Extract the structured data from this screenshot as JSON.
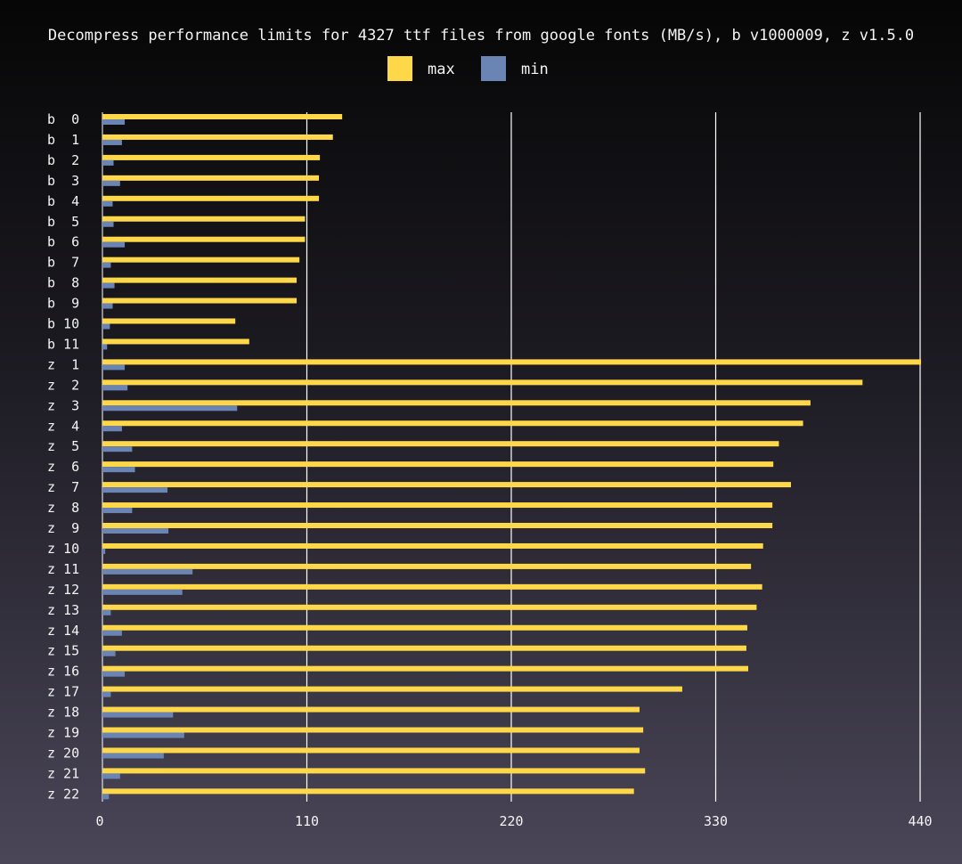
{
  "chart_data": {
    "type": "bar",
    "orientation": "horizontal",
    "title": "Decompress performance limits for 4327 ttf files from google fonts (MB/s), b v1000009, z v1.5.0",
    "legend_placement": "top-center",
    "grid": true,
    "categories": [
      "b  0",
      "b  1",
      "b  2",
      "b  3",
      "b  4",
      "b  5",
      "b  6",
      "b  7",
      "b  8",
      "b  9",
      "b 10",
      "b 11",
      "z  1",
      "z  2",
      "z  3",
      "z  4",
      "z  5",
      "z  6",
      "z  7",
      "z  8",
      "z  9",
      "z 10",
      "z 11",
      "z 12",
      "z 13",
      "z 14",
      "z 15",
      "z 16",
      "z 17",
      "z 18",
      "z 19",
      "z 20",
      "z 21",
      "z 22"
    ],
    "xlim": [
      0,
      440
    ],
    "xticks": [
      0,
      110,
      220,
      330,
      440
    ],
    "series": [
      {
        "name": "max",
        "color": "#ffd84a",
        "values": [
          129,
          124,
          117,
          116.5,
          116.5,
          109,
          109,
          106,
          104.5,
          104.5,
          71.5,
          79,
          440.5,
          409,
          381,
          377,
          364,
          361,
          370.5,
          360.5,
          360.5,
          355.5,
          349,
          355,
          352,
          347,
          346.5,
          347.5,
          312,
          289,
          291,
          289,
          292,
          286
        ]
      },
      {
        "name": "min",
        "color": "#6a84b4",
        "values": [
          12,
          10.5,
          6,
          9.5,
          5.5,
          6,
          12,
          4.5,
          6.5,
          5.5,
          4,
          2.5,
          12,
          13.5,
          72.5,
          10.5,
          16,
          17.5,
          35,
          16,
          35.5,
          1.5,
          48.5,
          43,
          4.5,
          10.5,
          7,
          12,
          4.5,
          38,
          44,
          33,
          9.5,
          3.5
        ]
      }
    ]
  }
}
